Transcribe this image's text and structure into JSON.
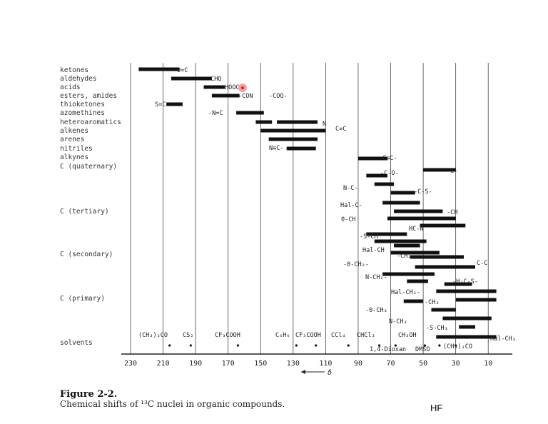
{
  "figure": {
    "title": "Figure 2-2.",
    "caption": "Chemical shifts of ¹³C nuclei in organic compounds.",
    "tag": "HF"
  },
  "chart_data": {
    "type": "bar",
    "orientation": "horizontal-ranges",
    "x_axis": {
      "reversed": true,
      "range": [
        230,
        0
      ],
      "ticks": [
        230,
        210,
        190,
        170,
        150,
        130,
        110,
        90,
        70,
        50,
        30,
        10
      ],
      "unit_label": "δ"
    },
    "grid": "vertical lines at every tick",
    "groups": [
      "ketones",
      "aldehydes",
      "acids",
      "esters, amides",
      "thioketones",
      "azomethines",
      "heteroaromatics",
      "alkenes",
      "arenes",
      "nitriles",
      "alkynes",
      "C (quaternary)",
      "C (tertiary)",
      "C (secondary)",
      "C (primary)",
      "solvents"
    ],
    "ranges": [
      {
        "group": "ketones",
        "from": 225,
        "to": 200
      },
      {
        "group": "aldehydes",
        "from": 205,
        "to": 180
      },
      {
        "group": "acids",
        "from": 185,
        "to": 172
      },
      {
        "group": "esters, amides",
        "from": 180,
        "to": 163
      },
      {
        "group": "thioketones",
        "from": 208,
        "to": 198
      },
      {
        "group": "azomethines",
        "from": 165,
        "to": 148
      },
      {
        "group": "heteroaromatics",
        "from": 153,
        "to": 143
      },
      {
        "group": "heteroaromatics",
        "from": 140,
        "to": 115
      },
      {
        "group": "alkenes",
        "from": 150,
        "to": 110
      },
      {
        "group": "arenes",
        "from": 145,
        "to": 115
      },
      {
        "group": "nitriles",
        "from": 125,
        "to": 116
      },
      {
        "group": "alkynes",
        "from": 134,
        "to": 120
      },
      {
        "group": "C (quaternary)",
        "from": 90,
        "to": 72
      },
      {
        "group": "C (quaternary)",
        "from": 50,
        "to": 30
      },
      {
        "group": "C (quaternary)",
        "from": 85,
        "to": 72
      },
      {
        "group": "C (quaternary)",
        "from": 80,
        "to": 68
      },
      {
        "group": "C (quaternary)",
        "from": 70,
        "to": 55
      },
      {
        "group": "C (tertiary)",
        "from": 75,
        "to": 52
      },
      {
        "group": "C (tertiary)",
        "from": 68,
        "to": 38
      },
      {
        "group": "C (tertiary)",
        "from": 72,
        "to": 30
      },
      {
        "group": "C (tertiary)",
        "from": 52,
        "to": 24
      },
      {
        "group": "C (tertiary)",
        "from": 85,
        "to": 60
      },
      {
        "group": "C (tertiary)",
        "from": 80,
        "to": 48
      },
      {
        "group": "C (secondary)",
        "from": 68,
        "to": 52
      },
      {
        "group": "C (secondary)",
        "from": 70,
        "to": 40
      },
      {
        "group": "C (secondary)",
        "from": 58,
        "to": 25
      },
      {
        "group": "C (secondary)",
        "from": 55,
        "to": 18
      },
      {
        "group": "C (secondary)",
        "from": 75,
        "to": 43
      },
      {
        "group": "C (secondary)",
        "from": 60,
        "to": 47
      },
      {
        "group": "C (primary)",
        "from": 37,
        "to": 20
      },
      {
        "group": "C (primary)",
        "from": 42,
        "to": 5
      },
      {
        "group": "C (primary)",
        "from": 30,
        "to": 5
      },
      {
        "group": "C (primary)",
        "from": 62,
        "to": 50
      },
      {
        "group": "C (primary)",
        "from": 45,
        "to": 30
      },
      {
        "group": "C (primary)",
        "from": 38,
        "to": 8
      },
      {
        "group": "C (primary)",
        "from": 28,
        "to": 18
      },
      {
        "group": "solvents",
        "from": 42,
        "to": 5
      }
    ],
    "structure_labels": [
      "0=C",
      "-CHO",
      "HOOC",
      "-CON",
      "-COO-",
      "S=C",
      "-N=C",
      "N",
      "C=C",
      "N≡C-",
      "-C≡C-",
      "-C-O-",
      "-C-",
      "N-C-",
      "-C-S-",
      "Hal-C-",
      "-CH",
      "0-CH",
      "HC-N",
      "-S-CH",
      "Hal-CH",
      "-CH₂-",
      "C-C",
      "-0-CH₂-",
      "N-CH₂-",
      "-H₂C-S-",
      "Hal-CH₂-",
      "-CH₃",
      "-0-CH₃",
      "N-CH₃",
      "-S-CH₃",
      "Hal-CH₃"
    ],
    "solvents": [
      {
        "name": "(CH₃)₂CO",
        "value": 206
      },
      {
        "name": "CS₂",
        "value": 193
      },
      {
        "name": "CF₃COOH",
        "value": 164
      },
      {
        "name": "C₆H₆",
        "value": 128
      },
      {
        "name": "CF₃COOH",
        "value": 116
      },
      {
        "name": "CCl₄",
        "value": 96
      },
      {
        "name": "CHCl₃",
        "value": 77
      },
      {
        "name": "CH₃OH",
        "value": 49
      },
      {
        "name": "1,4-Dioxan",
        "value": 67
      },
      {
        "name": "DMSO",
        "value": 40
      },
      {
        "name": "(CH₃)₂CO",
        "value": 30
      }
    ]
  }
}
